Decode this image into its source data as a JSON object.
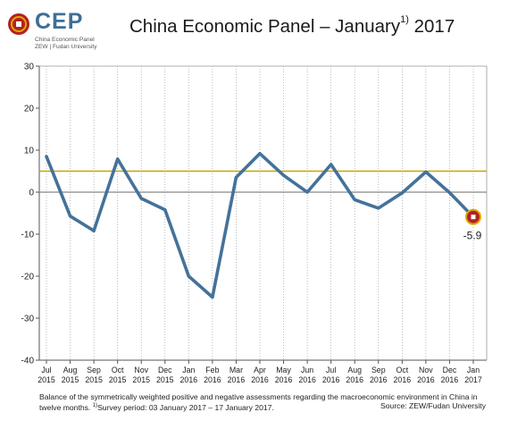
{
  "logo": {
    "wordmark": "CEP",
    "subtitle_line1": "China Economic Panel",
    "subtitle_line2": "ZEW | Fudan University",
    "mark_color": "#b22222",
    "ring_color": "#e0a800"
  },
  "header": {
    "title": "China Economic Panel – January",
    "title_sup": "1)",
    "title_year": "2017"
  },
  "footer": {
    "note": "Balance of the symmetrically weighted positive and negative assessments regarding the macroeconomic environment in China in twelve months.",
    "note_sup": "1)",
    "survey": "Survey period: 03 January 2017 – 17 January 2017.",
    "source": "Source: ZEW/Fudan University"
  },
  "chart_data": {
    "type": "line",
    "categories": [
      [
        "Jul",
        "2015"
      ],
      [
        "Aug",
        "2015"
      ],
      [
        "Sep",
        "2015"
      ],
      [
        "Oct",
        "2015"
      ],
      [
        "Nov",
        "2015"
      ],
      [
        "Dec",
        "2015"
      ],
      [
        "Jan",
        "2016"
      ],
      [
        "Feb",
        "2016"
      ],
      [
        "Mar",
        "2016"
      ],
      [
        "Apr",
        "2016"
      ],
      [
        "May",
        "2016"
      ],
      [
        "Jun",
        "2016"
      ],
      [
        "Jul",
        "2016"
      ],
      [
        "Aug",
        "2016"
      ],
      [
        "Sep",
        "2016"
      ],
      [
        "Oct",
        "2016"
      ],
      [
        "Nov",
        "2016"
      ],
      [
        "Dec",
        "2016"
      ],
      [
        "Jan",
        "2017"
      ]
    ],
    "values": [
      8.5,
      -5.7,
      -9.2,
      7.9,
      -1.5,
      -4.2,
      -20.0,
      -25.0,
      3.5,
      9.2,
      4.0,
      0.0,
      6.6,
      -1.8,
      -3.8,
      -0.2,
      4.8,
      -0.1,
      -5.9
    ],
    "reference_line": 5.0,
    "ylim": [
      -40,
      30
    ],
    "yticks": [
      -40,
      -30,
      -20,
      -10,
      0,
      10,
      20,
      30
    ],
    "ytick_labels": [
      "-40",
      "-30",
      "-20",
      "-10",
      "0",
      "10",
      "20",
      "30"
    ],
    "last_value_label": "-5.9",
    "grid": "vertical dotted",
    "line_color": "#44729a",
    "reference_color": "#c8a400",
    "zero_line_color": "#888888",
    "marker_color": "#b22222"
  }
}
